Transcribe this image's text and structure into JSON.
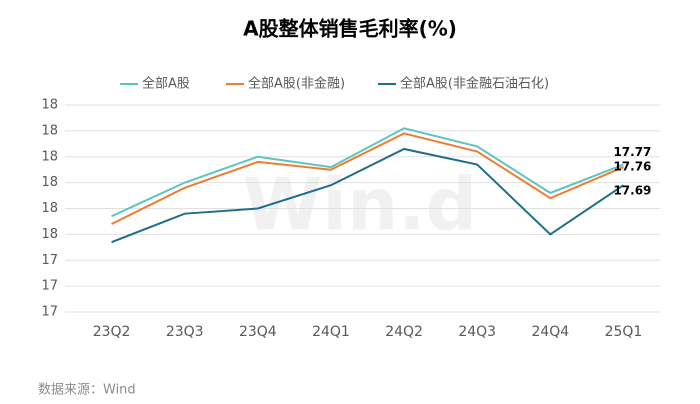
{
  "chart_data": {
    "type": "line",
    "title": "A股整体销售毛利率(%)",
    "categories": [
      "23Q2",
      "23Q3",
      "23Q4",
      "24Q1",
      "24Q2",
      "24Q3",
      "24Q4",
      "25Q1"
    ],
    "series": [
      {
        "name": "全部A股",
        "color": "#5cc5bf",
        "values": [
          17.57,
          17.7,
          17.8,
          17.76,
          17.91,
          17.84,
          17.66,
          17.77
        ]
      },
      {
        "name": "全部A股(非金融)",
        "color": "#ee7d31",
        "values": [
          17.54,
          17.68,
          17.78,
          17.75,
          17.89,
          17.82,
          17.64,
          17.76
        ]
      },
      {
        "name": "全部A股(非金融石油石化)",
        "color": "#1f6f8b",
        "values": [
          17.47,
          17.58,
          17.6,
          17.69,
          17.83,
          17.77,
          17.5,
          17.69
        ]
      }
    ],
    "ylim": [
      17.2,
      18.0
    ],
    "yticks": [
      {
        "value": 17.2,
        "label": "17"
      },
      {
        "value": 17.3,
        "label": "17"
      },
      {
        "value": 17.4,
        "label": "17"
      },
      {
        "value": 17.5,
        "label": "18"
      },
      {
        "value": 17.6,
        "label": "18"
      },
      {
        "value": 17.7,
        "label": "18"
      },
      {
        "value": 17.8,
        "label": "18"
      },
      {
        "value": 17.9,
        "label": "18"
      },
      {
        "value": 18.0,
        "label": "18"
      }
    ],
    "grid": true,
    "legend": "top",
    "watermark": "Win.d",
    "source": "数据来源：Wind"
  }
}
